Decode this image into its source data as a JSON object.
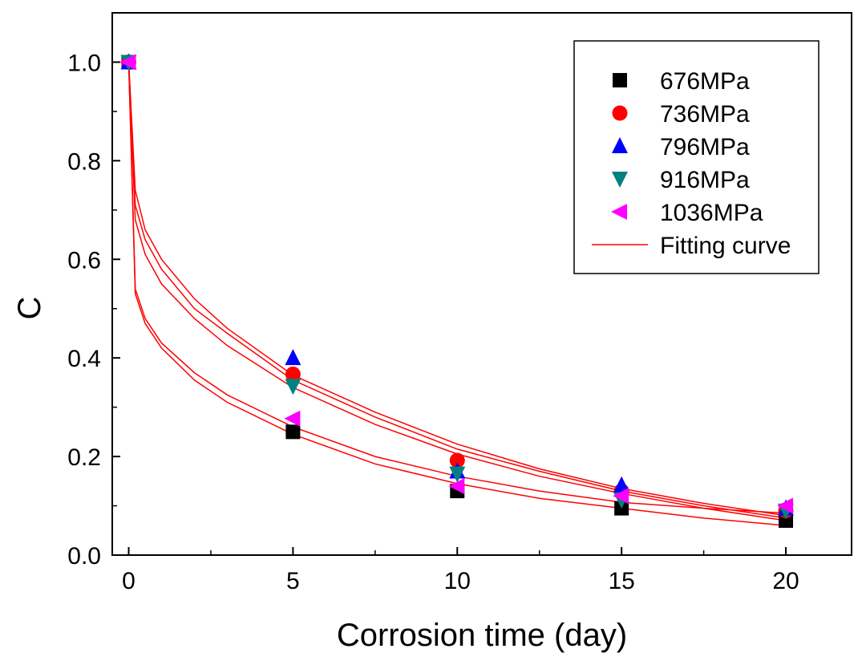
{
  "chart_data": {
    "type": "scatter",
    "xlabel": "Corrosion time (day)",
    "ylabel": "C",
    "xlim": [
      -0.5,
      22
    ],
    "ylim": [
      0,
      1.1
    ],
    "x_ticks": [
      0,
      5,
      10,
      15,
      20
    ],
    "x_tick_labels": [
      "0",
      "5",
      "10",
      "15",
      "20"
    ],
    "x_minor_ticks": [
      2.5,
      7.5,
      12.5,
      17.5
    ],
    "y_ticks": [
      0.0,
      0.2,
      0.4,
      0.6,
      0.8,
      1.0
    ],
    "y_tick_labels": [
      "0.0",
      "0.2",
      "0.4",
      "0.6",
      "0.8",
      "1.0"
    ],
    "y_minor_ticks": [
      0.1,
      0.3,
      0.5,
      0.7,
      0.9
    ],
    "grid": false,
    "legend_position": "top-right",
    "series": [
      {
        "name": "676MPa",
        "marker": "square",
        "color": "#000000",
        "x": [
          0,
          5,
          10,
          15,
          20
        ],
        "y": [
          1.0,
          0.25,
          0.13,
          0.095,
          0.07
        ]
      },
      {
        "name": "736MPa",
        "marker": "circle",
        "color": "#ff0000",
        "x": [
          0,
          5,
          10,
          15,
          20
        ],
        "y": [
          1.0,
          0.367,
          0.192,
          0.13,
          0.09
        ]
      },
      {
        "name": "796MPa",
        "marker": "triangle-up",
        "color": "#0000ff",
        "x": [
          0,
          5,
          10,
          15,
          20
        ],
        "y": [
          1.0,
          0.4,
          0.17,
          0.142,
          0.095
        ]
      },
      {
        "name": "916MPa",
        "marker": "triangle-down",
        "color": "#008080",
        "x": [
          0,
          5,
          10,
          15,
          20
        ],
        "y": [
          1.0,
          0.343,
          0.165,
          0.112,
          0.09
        ]
      },
      {
        "name": "1036MPa",
        "marker": "triangle-left",
        "color": "#ff00ff",
        "x": [
          0,
          5,
          10,
          15,
          20
        ],
        "y": [
          1.0,
          0.277,
          0.14,
          0.12,
          0.1
        ]
      }
    ],
    "fitting_curves": {
      "name": "Fitting curve",
      "color": "#ff0000",
      "curves": [
        {
          "x": [
            0,
            0.2,
            0.5,
            1,
            2,
            3,
            5,
            7.5,
            10,
            12.5,
            15,
            17.5,
            20
          ],
          "y": [
            1.0,
            0.74,
            0.66,
            0.6,
            0.52,
            0.46,
            0.365,
            0.29,
            0.225,
            0.175,
            0.135,
            0.105,
            0.08
          ]
        },
        {
          "x": [
            0,
            0.2,
            0.5,
            1,
            2,
            3,
            5,
            7.5,
            10,
            12.5,
            15,
            17.5,
            20
          ],
          "y": [
            1.0,
            0.71,
            0.64,
            0.58,
            0.5,
            0.45,
            0.355,
            0.28,
            0.215,
            0.17,
            0.13,
            0.1,
            0.075
          ]
        },
        {
          "x": [
            0,
            0.2,
            0.5,
            1,
            2,
            3,
            5,
            7.5,
            10,
            12.5,
            15,
            17.5,
            20
          ],
          "y": [
            1.0,
            0.68,
            0.61,
            0.55,
            0.48,
            0.425,
            0.34,
            0.265,
            0.205,
            0.16,
            0.125,
            0.095,
            0.07
          ]
        },
        {
          "x": [
            0,
            0.2,
            0.5,
            1,
            2,
            3,
            5,
            7.5,
            10,
            12.5,
            15,
            17.5,
            20
          ],
          "y": [
            1.0,
            0.54,
            0.48,
            0.43,
            0.37,
            0.325,
            0.26,
            0.2,
            0.16,
            0.13,
            0.107,
            0.095,
            0.085
          ]
        },
        {
          "x": [
            0,
            0.2,
            0.5,
            1,
            2,
            3,
            5,
            7.5,
            10,
            12.5,
            15,
            17.5,
            20
          ],
          "y": [
            1.0,
            0.53,
            0.47,
            0.42,
            0.355,
            0.31,
            0.245,
            0.185,
            0.145,
            0.115,
            0.095,
            0.075,
            0.06
          ]
        }
      ]
    }
  }
}
